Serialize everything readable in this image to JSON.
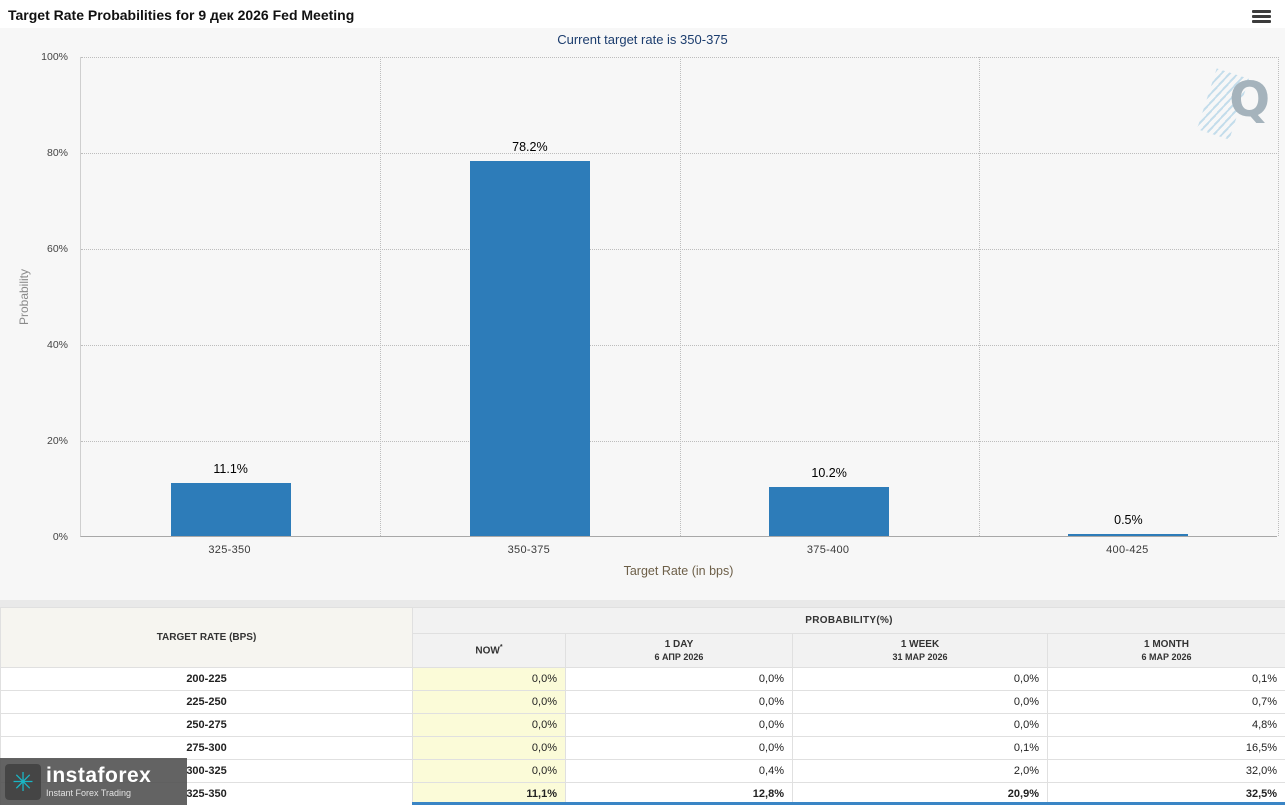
{
  "chart_data": {
    "type": "bar",
    "title": "Target Rate Probabilities for 9 дек 2026 Fed Meeting",
    "subtitle": "Current target rate is 350-375",
    "xlabel": "Target Rate (in bps)",
    "ylabel": "Probability",
    "categories": [
      "325-350",
      "350-375",
      "375-400",
      "400-425"
    ],
    "values": [
      11.1,
      78.2,
      10.2,
      0.5
    ],
    "labels": [
      "11.1%",
      "78.2%",
      "10.2%",
      "0.5%"
    ],
    "yticks": [
      0,
      20,
      40,
      60,
      80,
      100
    ],
    "ylim": [
      0,
      100
    ],
    "grid": "dotted",
    "legend": "none",
    "bar_color": "#2d7cb9"
  },
  "watermark": {
    "letter": "Q"
  },
  "table": {
    "col1_header": "TARGET RATE (BPS)",
    "prob_header": "PROBABILITY(%)",
    "columns": [
      {
        "label": "NOW",
        "sup": "*",
        "date": ""
      },
      {
        "label": "1 DAY",
        "sup": "",
        "date": "6 АПР 2026"
      },
      {
        "label": "1 WEEK",
        "sup": "",
        "date": "31 МАР 2026"
      },
      {
        "label": "1 MONTH",
        "sup": "",
        "date": "6 МАР 2026"
      }
    ],
    "rows": [
      {
        "range": "200-225",
        "values": [
          "0,0%",
          "0,0%",
          "0,0%",
          "0,1%"
        ],
        "bold": false
      },
      {
        "range": "225-250",
        "values": [
          "0,0%",
          "0,0%",
          "0,0%",
          "0,7%"
        ],
        "bold": false
      },
      {
        "range": "250-275",
        "values": [
          "0,0%",
          "0,0%",
          "0,0%",
          "4,8%"
        ],
        "bold": false
      },
      {
        "range": "275-300",
        "values": [
          "0,0%",
          "0,0%",
          "0,1%",
          "16,5%"
        ],
        "bold": false
      },
      {
        "range": "300-325",
        "values": [
          "0,0%",
          "0,4%",
          "2,0%",
          "32,0%"
        ],
        "bold": false
      },
      {
        "range": "325-350",
        "values": [
          "11,1%",
          "12,8%",
          "20,9%",
          "32,5%"
        ],
        "bold": true
      }
    ],
    "accent_colors": {
      "now_column_bg": "#fbfbd8",
      "current_row_strip": "#3a85c5"
    }
  },
  "logo": {
    "brand": "instaforex",
    "tagline": "Instant Forex Trading"
  }
}
